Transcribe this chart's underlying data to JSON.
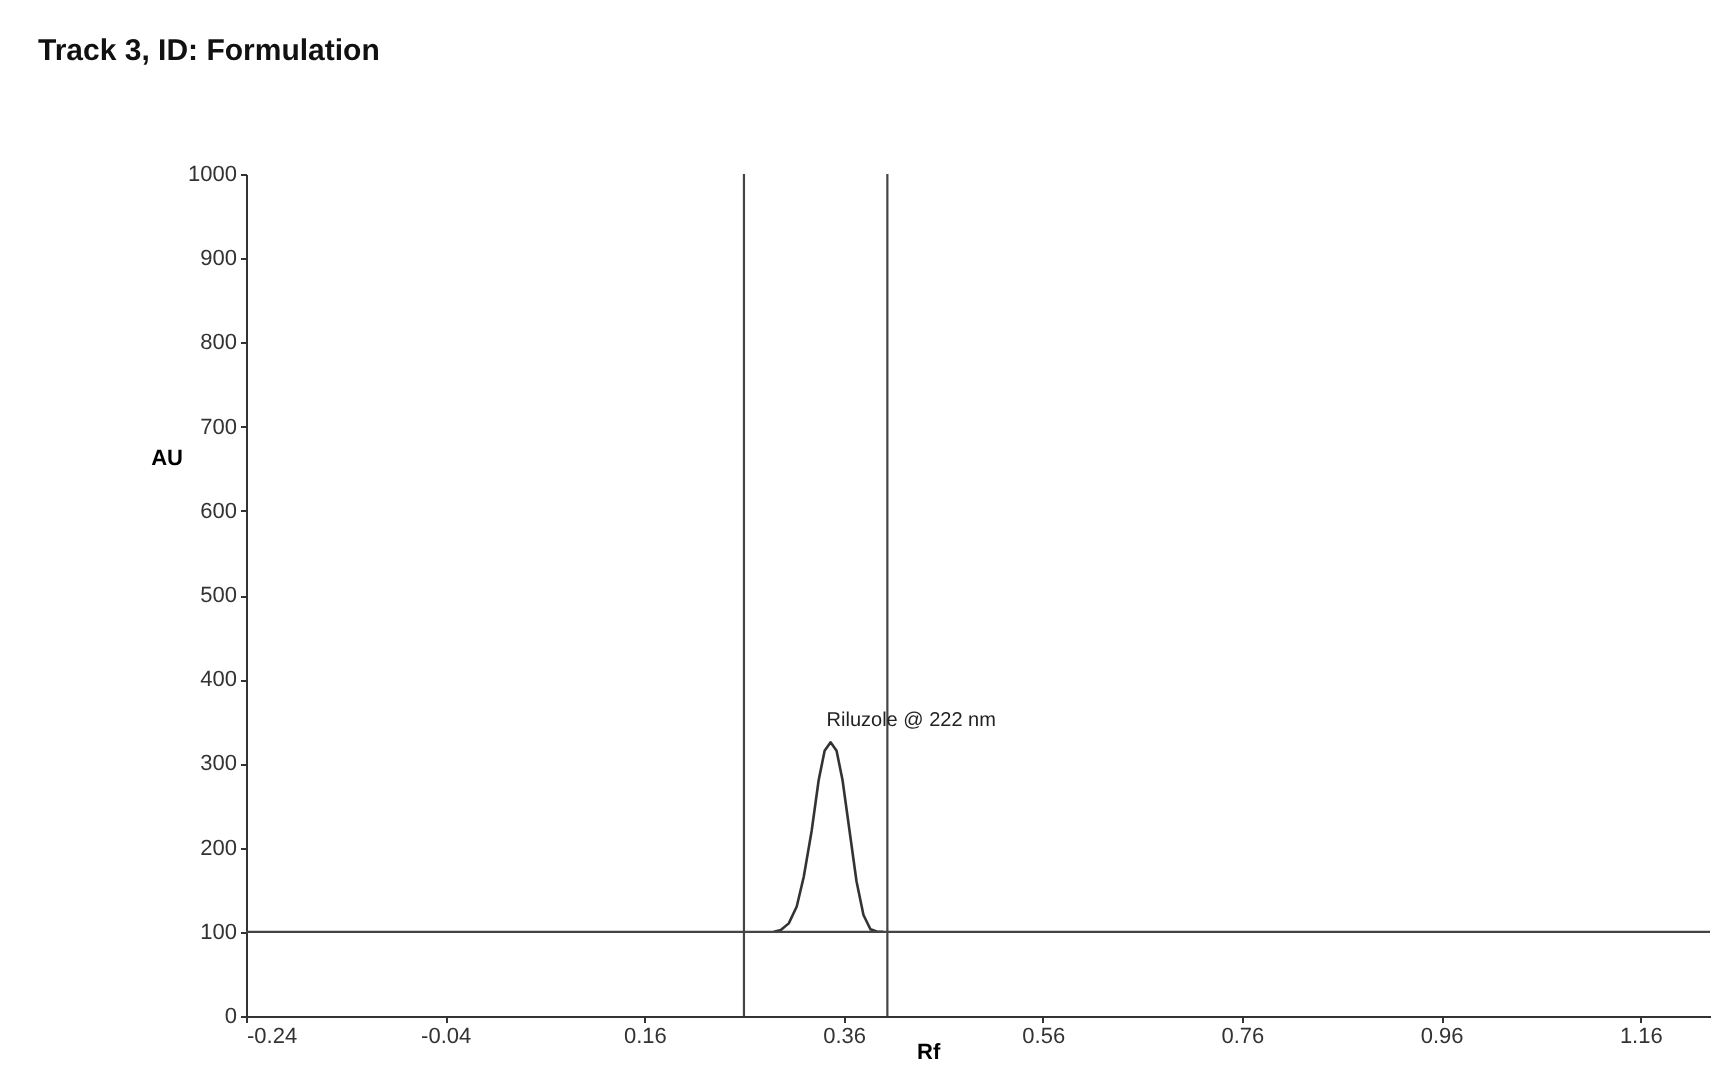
{
  "chart_data": {
    "type": "line",
    "title": "Track 3, ID: Formulation",
    "xlabel": "Rf",
    "ylabel": "AU",
    "x": [
      0.29,
      0.297,
      0.305,
      0.313,
      0.32,
      0.328,
      0.335,
      0.341,
      0.347,
      0.353,
      0.359,
      0.366,
      0.373,
      0.38,
      0.387,
      0.394,
      0.4
    ],
    "values": [
      100,
      102,
      110,
      130,
      165,
      220,
      280,
      315,
      325,
      315,
      280,
      220,
      160,
      120,
      103,
      100,
      100
    ],
    "color": "#333333",
    "xlim": [
      -0.24,
      1.23
    ],
    "ylim": [
      0,
      1000
    ],
    "xticks": [
      -0.24,
      -0.04,
      0.16,
      0.36,
      0.56,
      0.76,
      0.96,
      1.16
    ],
    "yticks": [
      0,
      100,
      200,
      300,
      400,
      500,
      600,
      700,
      800,
      900,
      1000
    ],
    "ref_lines": [
      {
        "axis": "x",
        "value": 0.26,
        "color": "#444444"
      },
      {
        "axis": "x",
        "value": 0.404,
        "color": "#444444"
      },
      {
        "axis": "y",
        "value": 100,
        "color": "#444444"
      }
    ],
    "annotations": [
      {
        "text": "Riluzole @ 222 nm",
        "x": 0.347,
        "y": 325
      }
    ]
  }
}
